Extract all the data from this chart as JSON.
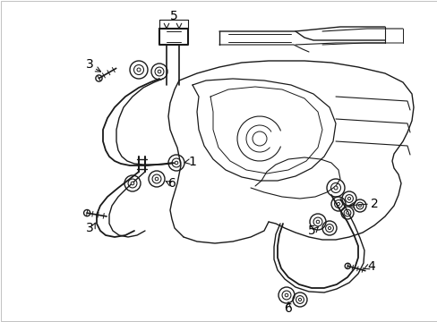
{
  "background_color": "#ffffff",
  "line_color": "#1a1a1a",
  "figsize": [
    4.89,
    3.6
  ],
  "dpi": 100,
  "border_color": "#cccccc",
  "label_color": "#000000"
}
